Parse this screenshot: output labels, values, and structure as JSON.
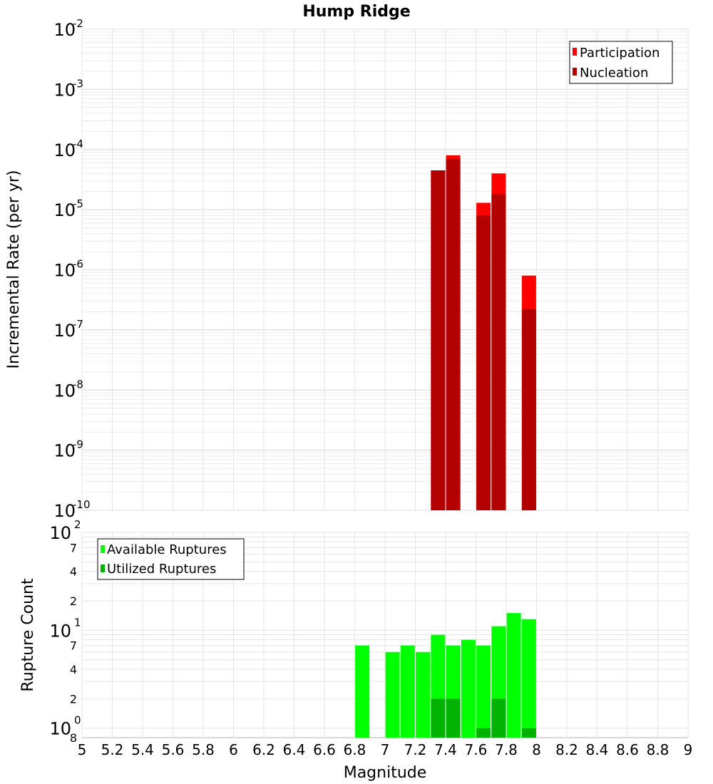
{
  "chart_data": [
    {
      "type": "bar",
      "title": "Hump Ridge",
      "xlabel": "",
      "ylabel": "Incremental Rate (per yr)",
      "yscale": "log",
      "xlim": [
        5,
        9
      ],
      "ylim": [
        1e-10,
        0.01
      ],
      "grid": true,
      "legend_position": "top-right",
      "y_tick_labels": [
        {
          "base": "10",
          "exp": "-10"
        },
        {
          "base": "10",
          "exp": "-9"
        },
        {
          "base": "10",
          "exp": "-8"
        },
        {
          "base": "10",
          "exp": "-7"
        },
        {
          "base": "10",
          "exp": "-6"
        },
        {
          "base": "10",
          "exp": "-5"
        },
        {
          "base": "10",
          "exp": "-4"
        },
        {
          "base": "10",
          "exp": "-3"
        },
        {
          "base": "10",
          "exp": "-2"
        }
      ],
      "series": [
        {
          "name": "Participation",
          "color": "#ff0000",
          "x": [
            7.35,
            7.45,
            7.65,
            7.75,
            7.95
          ],
          "values": [
            4.5e-05,
            8e-05,
            1.3e-05,
            4e-05,
            8e-07
          ]
        },
        {
          "name": "Nucleation",
          "color": "#b30000",
          "x": [
            7.35,
            7.45,
            7.65,
            7.75,
            7.95
          ],
          "values": [
            4.5e-05,
            7e-05,
            8e-06,
            1.8e-05,
            2.2e-07
          ]
        }
      ]
    },
    {
      "type": "bar",
      "title": "",
      "xlabel": "Magnitude",
      "ylabel": "Rupture Count",
      "yscale": "log",
      "xlim": [
        5,
        9
      ],
      "ylim": [
        0.8,
        100
      ],
      "grid": true,
      "legend_position": "top-left",
      "x_tick_labels": [
        "5",
        "5.2",
        "5.4",
        "5.6",
        "5.8",
        "6",
        "6.2",
        "6.4",
        "6.6",
        "6.8",
        "7",
        "7.2",
        "7.4",
        "7.6",
        "7.8",
        "8",
        "8.2",
        "8.4",
        "8.6",
        "8.8",
        "9"
      ],
      "y_tick_labels": [
        {
          "value": 1,
          "base": "10",
          "exp": "0"
        },
        {
          "value": 10,
          "base": "10",
          "exp": "1"
        },
        {
          "value": 100,
          "base": "10",
          "exp": "2"
        }
      ],
      "y_minor_labels": [
        {
          "value": 0.8,
          "label": "8"
        },
        {
          "value": 2,
          "label": "2"
        },
        {
          "value": 4,
          "label": "4"
        },
        {
          "value": 7,
          "label": "7"
        },
        {
          "value": 20,
          "label": "2"
        },
        {
          "value": 40,
          "label": "4"
        },
        {
          "value": 70,
          "label": "7"
        }
      ],
      "series": [
        {
          "name": "Available Ruptures",
          "color": "#00ff00",
          "x": [
            6.85,
            7.05,
            7.15,
            7.25,
            7.35,
            7.45,
            7.55,
            7.65,
            7.75,
            7.85,
            7.95
          ],
          "values": [
            7,
            6,
            7,
            6,
            9,
            7,
            8,
            7,
            11,
            15,
            13
          ]
        },
        {
          "name": "Utilized Ruptures",
          "color": "#00b300",
          "x": [
            7.35,
            7.45,
            7.65,
            7.75,
            7.95
          ],
          "values": [
            2,
            2,
            1,
            2,
            1
          ]
        }
      ]
    }
  ]
}
